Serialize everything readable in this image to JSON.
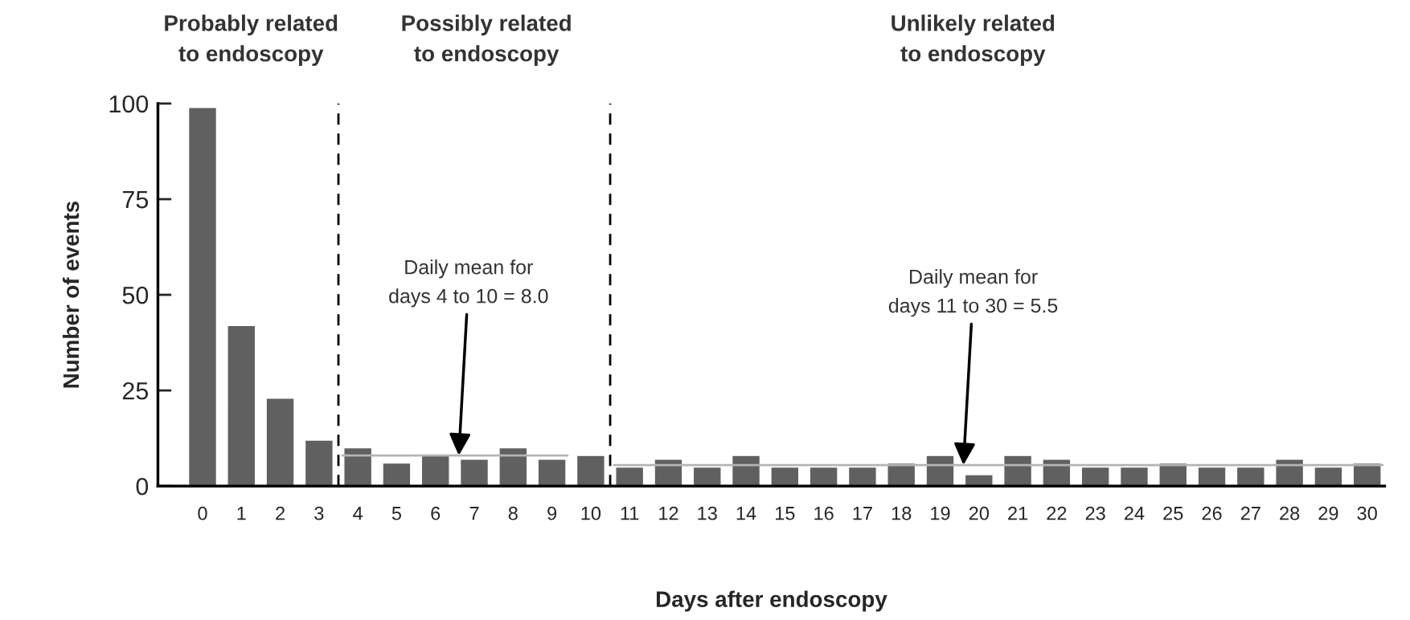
{
  "chart_data": {
    "type": "bar",
    "xlabel": "Days after endoscopy",
    "ylabel": "Number of events",
    "x": [
      0,
      1,
      2,
      3,
      4,
      5,
      6,
      7,
      8,
      9,
      10,
      11,
      12,
      13,
      14,
      15,
      16,
      17,
      18,
      19,
      20,
      21,
      22,
      23,
      24,
      25,
      26,
      27,
      28,
      29,
      30
    ],
    "series": [
      {
        "color": "#606060",
        "values": [
          99,
          42,
          23,
          12,
          10,
          6,
          8,
          7,
          10,
          7,
          8,
          5,
          7,
          5,
          8,
          5,
          5,
          5,
          6,
          8,
          3,
          8,
          7,
          5,
          5,
          6,
          5,
          5,
          7,
          5,
          6
        ]
      },
      {
        "type": "line",
        "color": "#b4b4b4",
        "x": [
          3.6,
          9.4
        ],
        "values": [
          8.0,
          8.0
        ]
      },
      {
        "type": "line",
        "color": "#b4b4b4",
        "x": [
          10.6,
          30.4
        ],
        "values": [
          5.5,
          5.5
        ]
      }
    ],
    "xlim": [
      -1.15,
      30.45
    ],
    "ylim": [
      0,
      100
    ],
    "xticks": [
      0,
      1,
      2,
      3,
      4,
      5,
      6,
      7,
      8,
      9,
      10,
      11,
      12,
      13,
      14,
      15,
      16,
      17,
      18,
      19,
      20,
      21,
      22,
      23,
      24,
      25,
      26,
      27,
      28,
      29,
      30
    ],
    "yticks": [
      0,
      25,
      50,
      75,
      100
    ],
    "ref_lines": [
      {
        "axis": "x",
        "value": 3.5,
        "color": "#000000",
        "line_style": "dashed"
      },
      {
        "axis": "x",
        "value": 10.5,
        "color": "#000000",
        "line_style": "dashed"
      }
    ],
    "annotations": [
      "Probably related\nto endoscopy",
      "Possibly related\nto endoscopy",
      "Unlikely related\nto endoscopy",
      {
        "text": "Daily mean for\ndays 4 to 10 = 8.0",
        "x": 6.6,
        "y": 8.0
      },
      {
        "text": "Daily mean for\ndays 11 to 30 = 5.5",
        "x": 19.6,
        "y": 5.5
      }
    ],
    "grid": false,
    "legend": false
  }
}
